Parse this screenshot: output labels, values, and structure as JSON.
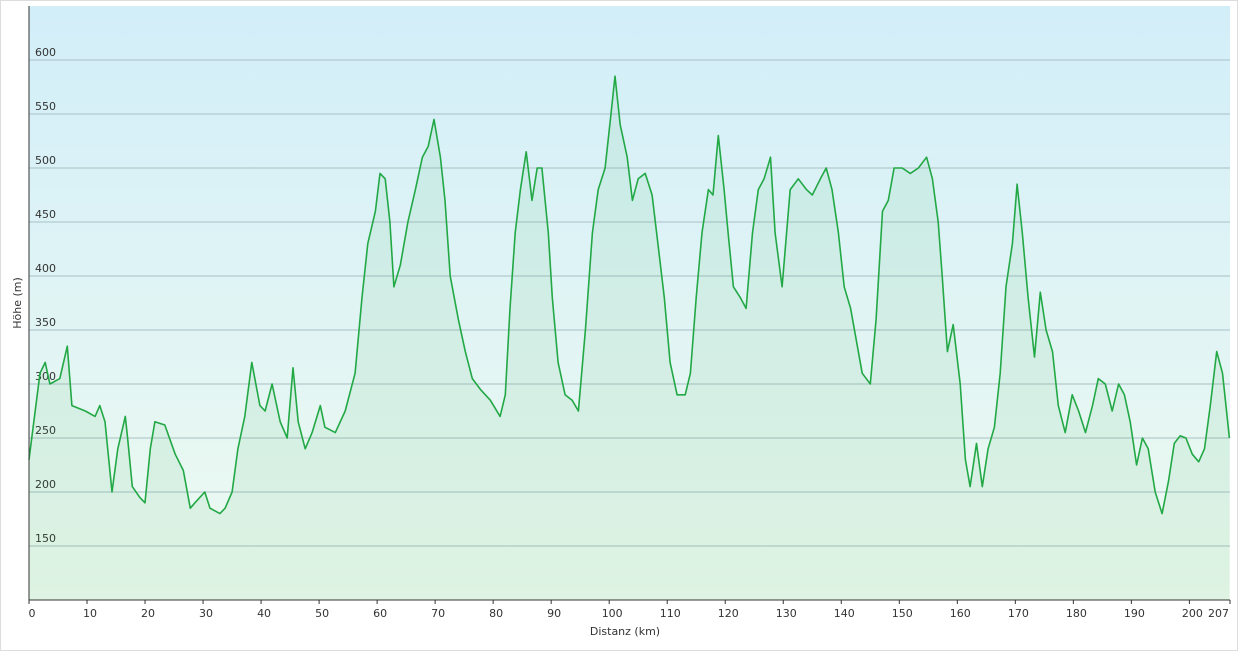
{
  "chart_data": {
    "type": "area",
    "xlabel": "Distanz (km)",
    "ylabel": "Höhe (m)",
    "x": [
      0,
      1.9,
      2.8,
      3.6,
      5.3,
      6.6,
      7.4,
      9.7,
      11.4,
      12.2,
      13.1,
      14.3,
      15.3,
      16.6,
      17,
      17.8,
      19.1,
      20,
      20.9,
      21.7,
      23.4,
      25.2,
      26.6,
      27.8,
      28.6,
      30.3,
      31.2,
      32.9,
      33.8,
      35,
      36,
      37.2,
      38.4,
      39.8,
      40.7,
      41.9,
      43.3,
      44.5,
      45.5,
      46.4,
      47.6,
      48.8,
      50.2,
      51,
      52.8,
      54.5,
      56.2,
      57.4,
      58.4,
      59.7,
      60.5,
      61.4,
      62.2,
      62.9,
      64,
      65.3,
      66.6,
      67.8,
      68.8,
      69.8,
      70.9,
      71.7,
      72.6,
      74,
      75.2,
      76.4,
      77.8,
      79.5,
      81.2,
      82.1,
      82.9,
      83.8,
      84.7,
      85.7,
      86.7,
      87.6,
      88.4,
      89.5,
      90.2,
      91.2,
      92.4,
      93.6,
      94.7,
      95.9,
      97.1,
      98.1,
      99.3,
      100.2,
      101,
      101.9,
      103.1,
      104,
      105,
      106.2,
      107.4,
      108.4,
      109.5,
      110.5,
      111.7,
      113.1,
      114,
      115,
      116,
      117.1,
      117.9,
      118.8,
      119.8,
      120.5,
      121.4,
      122.6,
      123.6,
      124.7,
      125.7,
      126.7,
      127.8,
      128.6,
      129.8,
      131.2,
      132.6,
      134,
      135,
      136.4,
      137.4,
      138.4,
      139.5,
      140.5,
      141.6,
      142.6,
      143.6,
      145,
      146,
      147.1,
      148.1,
      149.1,
      150.5,
      151.9,
      153.3,
      154.7,
      155.7,
      156.7,
      157.4,
      158.3,
      159.3,
      160.5,
      161.4,
      162.2,
      163.3,
      164.3,
      165.3,
      166.4,
      167.4,
      168.4,
      169.5,
      170.3,
      171.2,
      172.2,
      173.3,
      174.3,
      175.3,
      176.4,
      177.4,
      178.6,
      179.8,
      180.9,
      182.1,
      183.3,
      184.3,
      185.5,
      186.7,
      187.8,
      188.8,
      189.8,
      190.9,
      191.9,
      192.9,
      194.1,
      195.3,
      196.4,
      197.4,
      198.4,
      199.4,
      200.5,
      201.6,
      202.6,
      203.6,
      204.7,
      205.7,
      206.9
    ],
    "values": [
      230,
      310,
      320,
      300,
      305,
      335,
      280,
      275,
      270,
      280,
      265,
      200,
      240,
      270,
      250,
      205,
      195,
      190,
      240,
      265,
      262,
      235,
      220,
      185,
      190,
      200,
      185,
      180,
      185,
      200,
      240,
      270,
      320,
      280,
      275,
      300,
      265,
      250,
      315,
      265,
      240,
      255,
      280,
      260,
      255,
      275,
      310,
      380,
      430,
      460,
      495,
      490,
      450,
      390,
      410,
      450,
      480,
      510,
      520,
      545,
      510,
      470,
      400,
      360,
      330,
      305,
      295,
      285,
      270,
      290,
      370,
      440,
      480,
      515,
      470,
      500,
      500,
      440,
      380,
      320,
      290,
      285,
      275,
      350,
      440,
      480,
      500,
      545,
      585,
      540,
      510,
      470,
      490,
      495,
      475,
      430,
      380,
      320,
      290,
      290,
      310,
      380,
      440,
      480,
      475,
      530,
      480,
      440,
      390,
      380,
      370,
      440,
      480,
      490,
      510,
      440,
      390,
      480,
      490,
      480,
      475,
      490,
      500,
      480,
      440,
      390,
      370,
      340,
      310,
      300,
      360,
      460,
      470,
      500,
      500,
      495,
      500,
      510,
      490,
      450,
      400,
      330,
      355,
      300,
      230,
      205,
      245,
      205,
      240,
      260,
      310,
      390,
      430,
      485,
      440,
      380,
      325,
      385,
      350,
      330,
      280,
      255,
      290,
      275,
      255,
      280,
      305,
      300,
      275,
      300,
      290,
      265,
      225,
      250,
      240,
      200,
      180,
      210,
      245,
      252,
      250,
      235,
      228,
      240,
      280,
      330,
      310,
      250
    ],
    "color": "#22a845",
    "xlim": [
      0,
      207
    ],
    "xticks": [
      0,
      10,
      20,
      30,
      40,
      50,
      60,
      70,
      80,
      90,
      100,
      110,
      120,
      130,
      140,
      150,
      160,
      170,
      180,
      190,
      200,
      207
    ],
    "ylim": [
      100,
      650
    ],
    "yticks": [
      150,
      200,
      250,
      300,
      350,
      400,
      450,
      500,
      550,
      600
    ],
    "grid": true
  }
}
